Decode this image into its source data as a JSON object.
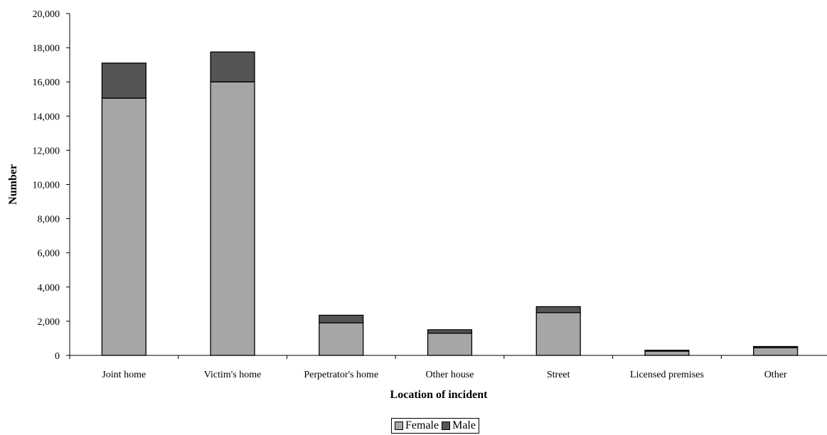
{
  "chart_data": {
    "type": "bar",
    "stacked": true,
    "categories": [
      "Joint home",
      "Victim's home",
      "Perpetrator's home",
      "Other house",
      "Street",
      "Licensed premises",
      "Other"
    ],
    "series": [
      {
        "name": "Female",
        "color": "#a6a6a6",
        "values": [
          15050,
          16000,
          1900,
          1300,
          2500,
          250,
          450
        ]
      },
      {
        "name": "Male",
        "color": "#555555",
        "values": [
          2050,
          1750,
          450,
          200,
          350,
          50,
          70
        ]
      }
    ],
    "title": "",
    "xlabel": "Location of incident",
    "ylabel": "Number",
    "ylim": [
      0,
      20000
    ],
    "yticks": [
      {
        "value": 0,
        "label": "0"
      },
      {
        "value": 2000,
        "label": "2,000"
      },
      {
        "value": 4000,
        "label": "4,000"
      },
      {
        "value": 6000,
        "label": "6,000"
      },
      {
        "value": 8000,
        "label": "8,000"
      },
      {
        "value": 10000,
        "label": "10,000"
      },
      {
        "value": 12000,
        "label": "12,000"
      },
      {
        "value": 14000,
        "label": "14,000"
      },
      {
        "value": 16000,
        "label": "16,000"
      },
      {
        "value": 18000,
        "label": "18,000"
      },
      {
        "value": 20000,
        "label": "20,000"
      }
    ],
    "grid": false,
    "legend_position": "bottom"
  }
}
